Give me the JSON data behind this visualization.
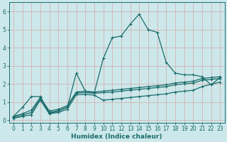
{
  "xlabel": "Humidex (Indice chaleur)",
  "bg_color": "#cce8ea",
  "grid_color": "#b8d8da",
  "line_color": "#1a6b6b",
  "xlim": [
    -0.5,
    23.5
  ],
  "ylim": [
    -0.15,
    6.5
  ],
  "xticks": [
    0,
    1,
    2,
    3,
    4,
    5,
    6,
    7,
    8,
    9,
    10,
    11,
    12,
    13,
    14,
    15,
    16,
    17,
    18,
    19,
    20,
    21,
    22,
    23
  ],
  "yticks": [
    0,
    1,
    2,
    3,
    4,
    5,
    6
  ],
  "lines": [
    {
      "x": [
        0,
        1,
        2,
        3,
        4,
        5,
        6,
        7,
        8,
        9,
        10,
        11,
        12,
        13,
        14,
        15,
        16,
        17,
        18,
        19,
        20,
        21,
        22,
        23
      ],
      "y": [
        0.2,
        0.7,
        1.3,
        1.3,
        0.35,
        0.5,
        0.7,
        2.6,
        1.6,
        1.5,
        3.4,
        4.55,
        4.65,
        5.3,
        5.85,
        5.0,
        4.85,
        3.2,
        2.6,
        2.5,
        2.5,
        2.4,
        1.95,
        2.35
      ]
    },
    {
      "x": [
        0,
        1,
        2,
        3,
        4,
        5,
        6,
        7,
        8,
        9,
        10,
        11,
        12,
        13,
        14,
        15,
        16,
        17,
        18,
        19,
        20,
        21,
        22,
        23
      ],
      "y": [
        0.2,
        0.35,
        0.55,
        1.25,
        0.5,
        0.6,
        0.8,
        1.55,
        1.6,
        1.55,
        1.6,
        1.65,
        1.7,
        1.75,
        1.8,
        1.85,
        1.9,
        1.95,
        2.05,
        2.1,
        2.15,
        2.3,
        2.35,
        2.4
      ]
    },
    {
      "x": [
        0,
        1,
        2,
        3,
        4,
        5,
        6,
        7,
        8,
        9,
        10,
        11,
        12,
        13,
        14,
        15,
        16,
        17,
        18,
        19,
        20,
        21,
        22,
        23
      ],
      "y": [
        0.15,
        0.28,
        0.42,
        1.2,
        0.42,
        0.52,
        0.72,
        1.5,
        1.52,
        1.48,
        1.52,
        1.55,
        1.6,
        1.65,
        1.7,
        1.75,
        1.8,
        1.85,
        1.95,
        2.0,
        2.05,
        2.2,
        2.25,
        2.3
      ]
    },
    {
      "x": [
        0,
        1,
        2,
        3,
        4,
        5,
        6,
        7,
        8,
        9,
        10,
        11,
        12,
        13,
        14,
        15,
        16,
        17,
        18,
        19,
        20,
        21,
        22,
        23
      ],
      "y": [
        0.1,
        0.2,
        0.3,
        1.1,
        0.35,
        0.42,
        0.6,
        1.4,
        1.42,
        1.38,
        1.1,
        1.15,
        1.2,
        1.25,
        1.3,
        1.35,
        1.4,
        1.45,
        1.55,
        1.6,
        1.65,
        1.85,
        1.98,
        2.1
      ]
    }
  ]
}
